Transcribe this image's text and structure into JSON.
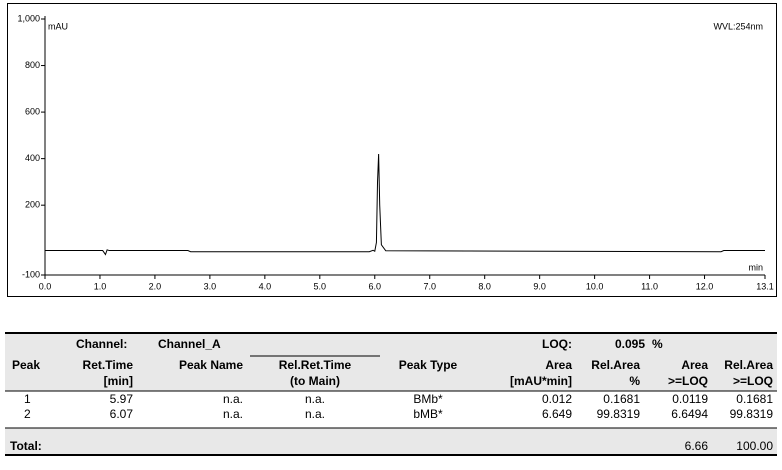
{
  "chart_data": {
    "type": "line",
    "y_label": "mAU",
    "x_label": "min",
    "annotation": "WVL:254nm",
    "x": [
      0,
      1.05,
      1.1,
      1.13,
      1.17,
      2.6,
      2.65,
      5.9,
      5.97,
      6.0,
      6.03,
      6.05,
      6.07,
      6.09,
      6.12,
      6.2,
      12.3,
      12.35,
      13.1
    ],
    "values": [
      5,
      5,
      -12,
      8,
      5,
      5,
      0,
      0,
      6,
      2,
      40,
      300,
      420,
      200,
      30,
      4,
      0,
      5,
      5
    ],
    "color": "#000000",
    "xlim": [
      0,
      13.1
    ],
    "xticks": [
      {
        "value": 0,
        "label": "0.0"
      },
      {
        "value": 1,
        "label": "1.0"
      },
      {
        "value": 2,
        "label": "2.0"
      },
      {
        "value": 3,
        "label": "3.0"
      },
      {
        "value": 4,
        "label": "4.0"
      },
      {
        "value": 5,
        "label": "5.0"
      },
      {
        "value": 6,
        "label": "6.0"
      },
      {
        "value": 7,
        "label": "7.0"
      },
      {
        "value": 8,
        "label": "8.0"
      },
      {
        "value": 9,
        "label": "9.0"
      },
      {
        "value": 10,
        "label": "10.0"
      },
      {
        "value": 11,
        "label": "11.0"
      },
      {
        "value": 12,
        "label": "12.0"
      },
      13.1
    ],
    "ylim": [
      -100,
      1000
    ],
    "yticks": [
      -100,
      200,
      400,
      600,
      800,
      {
        "value": 1000,
        "label": "1,000"
      }
    ]
  },
  "table": {
    "channel_label": "Channel:",
    "channel": "Channel_A",
    "loq_label": "LOQ:",
    "loq": "0.095",
    "loq_unit": "%",
    "columns": [
      [
        "Peak"
      ],
      [
        "Ret.Time",
        "[min]"
      ],
      [
        "Peak Name"
      ],
      [
        "Rel.Ret.Time",
        "(to Main)"
      ],
      [
        "Peak Type"
      ],
      [
        "Area",
        "[mAU*min]"
      ],
      [
        "Rel.Area",
        "%"
      ],
      [
        "Area",
        ">=LOQ"
      ],
      [
        "Rel.Area",
        ">=LOQ"
      ]
    ],
    "rows": [
      [
        "1",
        "5.97",
        "n.a.",
        "n.a.",
        "BMb*",
        "0.012",
        "0.1681",
        "0.0119",
        "0.1681"
      ],
      [
        "2",
        "6.07",
        "n.a.",
        "n.a.",
        "bMB*",
        "6.649",
        "99.8319",
        "6.6494",
        "99.8319"
      ]
    ],
    "total_label": "Total:",
    "total": [
      "6.66",
      "100.00"
    ]
  }
}
